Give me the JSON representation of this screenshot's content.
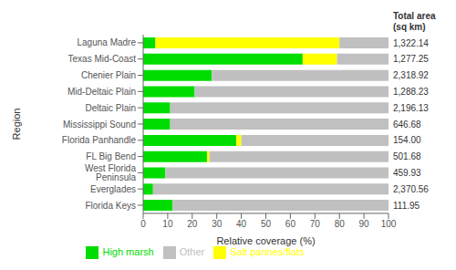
{
  "chart_data": {
    "type": "bar",
    "orientation": "horizontal",
    "stacked": true,
    "grid": false,
    "legend": "bottom",
    "xlabel": "Relative coverage (%)",
    "ylabel": "Region",
    "categories": [
      "Laguna Madre",
      "Texas Mid-Coast",
      "Chenier Plain",
      "Mid-Deltaic Plain",
      "Deltaic Plain",
      "Mississippi Sound",
      "Florida Panhandle",
      "FL Big Bend",
      "West Florida Peninsula",
      "Everglades",
      "Florida Keys"
    ],
    "series": [
      {
        "name": "High marsh",
        "color": "#00dd00",
        "values": [
          5,
          65,
          28,
          21,
          11,
          11,
          38,
          26,
          9,
          4,
          12
        ]
      },
      {
        "name": "Salt pannes/flats",
        "color": "#ffff00",
        "values": [
          75,
          14,
          0,
          0,
          0,
          0,
          2,
          1,
          0,
          0,
          0
        ]
      },
      {
        "name": "Other",
        "color": "#c0c0c0",
        "values": [
          20,
          21,
          72,
          79,
          89,
          89,
          60,
          73,
          91,
          96,
          88
        ]
      }
    ],
    "xlim": [
      0,
      100
    ],
    "xticks": [
      0,
      10,
      20,
      30,
      40,
      50,
      60,
      70,
      80,
      90,
      100
    ],
    "annotations": [
      {
        "text": "Total area\n(sq km)"
      },
      {
        "text": "1,322.14",
        "category": "Laguna Madre"
      },
      {
        "text": "1,277.25",
        "category": "Texas Mid-Coast"
      },
      {
        "text": "2,318.92",
        "category": "Chenier Plain"
      },
      {
        "text": "1,288.23",
        "category": "Mid-Deltaic Plain"
      },
      {
        "text": "2,196.13",
        "category": "Deltaic Plain"
      },
      {
        "text": "646.68",
        "category": "Mississippi Sound"
      },
      {
        "text": "154.00",
        "category": "Florida Panhandle"
      },
      {
        "text": "501.68",
        "category": "FL Big Bend"
      },
      {
        "text": "459.93",
        "category": "West Florida Peninsula"
      },
      {
        "text": "2,370.56",
        "category": "Everglades"
      },
      {
        "text": "111.95",
        "category": "Florida Keys"
      }
    ]
  }
}
